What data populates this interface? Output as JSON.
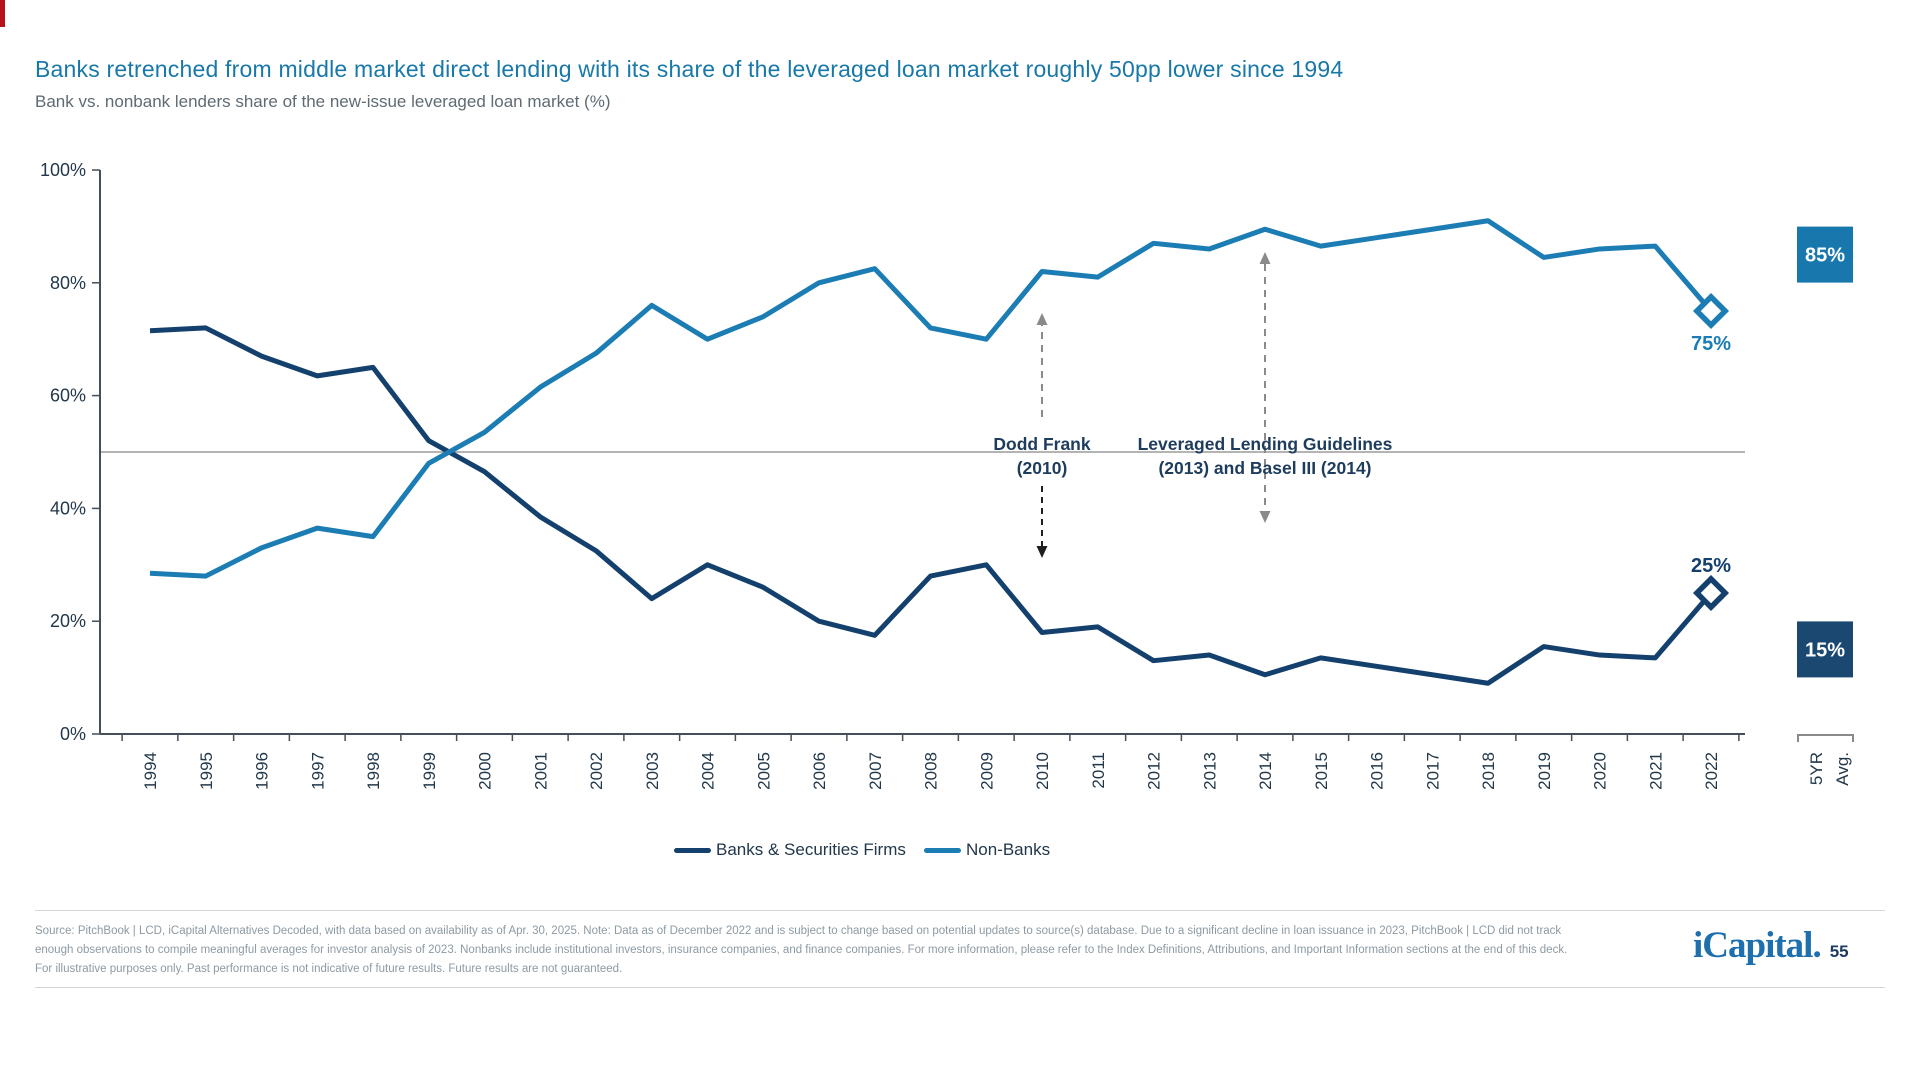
{
  "slide": {
    "accent_color": "#B5121B",
    "footer": {
      "lines": [
        "Source: PitchBook | LCD, iCapital Alternatives Decoded, with data based on availability as of Apr. 30, 2025. Note: Data as of December 2022 and is subject to change based on potential updates to source(s) database. Due to a significant decline in loan issuance in 2023, PitchBook | LCD did not track",
        "enough observations to compile meaningful averages for investor analysis of 2023. Nonbanks include institutional investors, insurance companies, and finance companies. For more information, please refer to the Index Definitions, Attributions, and Important Information sections at the end of this deck.",
        "For illustrative purposes only. Past performance is not indicative of future results. Future results are not guaranteed."
      ]
    },
    "logo": {
      "text": "iCapital.",
      "page_number": "55"
    }
  },
  "chart_data": {
    "type": "line",
    "title": "Banks retrenched from middle market direct lending with its share of the leveraged loan market roughly 50pp lower since 1994",
    "subtitle": "Bank vs. nonbank lenders share of the new-issue leveraged loan market (%)",
    "categories": [
      "1994",
      "1995",
      "1996",
      "1997",
      "1998",
      "1999",
      "2000",
      "2001",
      "2002",
      "2003",
      "2004",
      "2005",
      "2006",
      "2007",
      "2008",
      "2009",
      "2010",
      "2011",
      "2012",
      "2013",
      "2014",
      "2015",
      "2016",
      "2017",
      "2018",
      "2019",
      "2020",
      "2021",
      "2022"
    ],
    "x_axis_extra_label_lines": [
      "5YR",
      "Avg."
    ],
    "ylim": [
      0,
      100
    ],
    "y_ticks": [
      {
        "label": "0%",
        "value": 0
      },
      {
        "label": "20%",
        "value": 20
      },
      {
        "label": "40%",
        "value": 40
      },
      {
        "label": "60%",
        "value": 60
      },
      {
        "label": "80%",
        "value": 80
      },
      {
        "label": "100%",
        "value": 100
      }
    ],
    "reference_line_value": 50,
    "grid": "off",
    "legend_position": "bottom",
    "series": [
      {
        "name": "Banks & Securities Firms",
        "color": "#14406E",
        "avg_box_color": "#1B4871",
        "values": [
          71.5,
          72,
          67,
          63.5,
          65,
          52,
          46.5,
          38.5,
          32.5,
          24,
          30,
          26,
          20,
          17.5,
          28,
          30,
          18,
          19,
          13,
          14,
          10.5,
          13.5,
          12,
          10.5,
          9,
          15.5,
          14,
          13.5,
          25
        ],
        "end_label": "25%",
        "end_label_side": "above",
        "five_yr_avg_label": "15%",
        "five_yr_avg_value": 15
      },
      {
        "name": "Non-Banks",
        "color": "#1B7DB3",
        "avg_box_color": "#1878AD",
        "values": [
          28.5,
          28,
          33,
          36.5,
          35,
          48,
          53.5,
          61.5,
          67.5,
          76,
          70,
          74,
          80,
          82.5,
          72,
          70,
          82,
          81,
          87,
          86,
          89.5,
          86.5,
          88,
          89.5,
          91,
          84.5,
          86,
          86.5,
          75
        ],
        "end_label": "75%",
        "end_label_side": "below",
        "five_yr_avg_label": "85%",
        "five_yr_avg_value": 85
      }
    ],
    "annotations": [
      {
        "line1": "Dodd Frank",
        "line2": "(2010)",
        "year": "2010"
      },
      {
        "line1": "Leveraged Lending Guidelines",
        "line2": "(2013) and Basel III (2014)",
        "year": "2014"
      }
    ]
  }
}
